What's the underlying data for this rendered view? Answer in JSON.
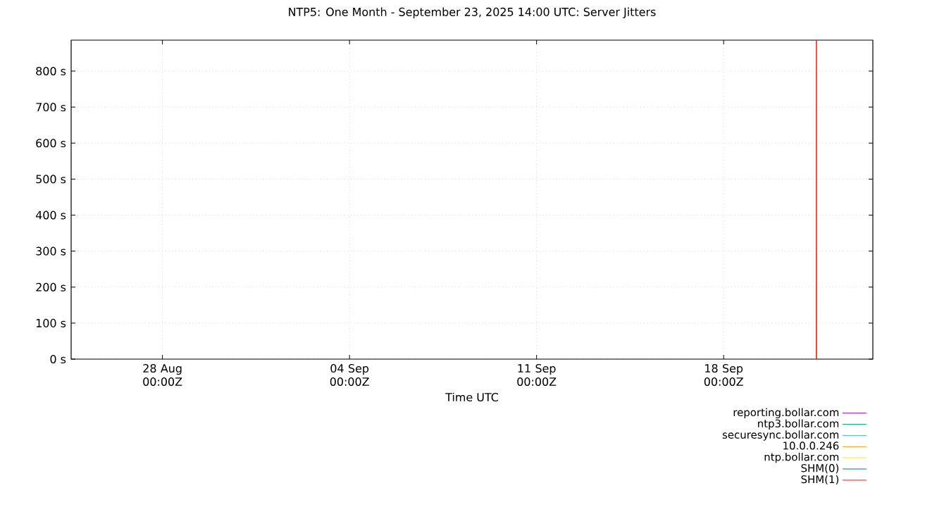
{
  "chart_data": {
    "type": "line",
    "title": "NTP5: One Month - September 23, 2025 14:00 UTC: Server Jitters",
    "xlabel": "Time UTC",
    "xlim": [
      "2025-08-24T14:00",
      "2025-09-23T14:00"
    ],
    "xticks": [
      {
        "value": "2025-08-28T00:00",
        "label": "28 Aug 00:00Z"
      },
      {
        "value": "2025-09-04T00:00",
        "label": "04 Sep 00:00Z"
      },
      {
        "value": "2025-09-11T00:00",
        "label": "11 Sep 00:00Z"
      },
      {
        "value": "2025-09-18T00:00",
        "label": "18 Sep 00:00Z"
      }
    ],
    "ylim": [
      0,
      886
    ],
    "yticks": [
      {
        "value": 0,
        "label": "0 s"
      },
      {
        "value": 100,
        "label": "100 s"
      },
      {
        "value": 200,
        "label": "200 s"
      },
      {
        "value": 300,
        "label": "300 s"
      },
      {
        "value": 400,
        "label": "400 s"
      },
      {
        "value": 500,
        "label": "500 s"
      },
      {
        "value": 600,
        "label": "600 s"
      },
      {
        "value": 700,
        "label": "700 s"
      },
      {
        "value": 800,
        "label": "800 s"
      }
    ],
    "grid": true,
    "legend": "bottom right",
    "series": [
      {
        "name": "reporting.bollar.com",
        "color": "#9400d3"
      },
      {
        "name": "ntp3.bollar.com",
        "color": "#009e73"
      },
      {
        "name": "securesync.bollar.com",
        "color": "#56b4e9"
      },
      {
        "name": "10.0.0.246",
        "color": "#e69f00"
      },
      {
        "name": "ntp.bollar.com",
        "color": "#f0e442"
      },
      {
        "name": "SHM(0)",
        "color": "#0072b2"
      },
      {
        "name": "SHM(1)",
        "color": "#e51e10",
        "x": [
          "2025-09-21T11:10",
          "2025-09-21T11:20",
          "2025-09-21T11:30"
        ],
        "values": [
          0,
          886,
          0
        ]
      }
    ]
  }
}
